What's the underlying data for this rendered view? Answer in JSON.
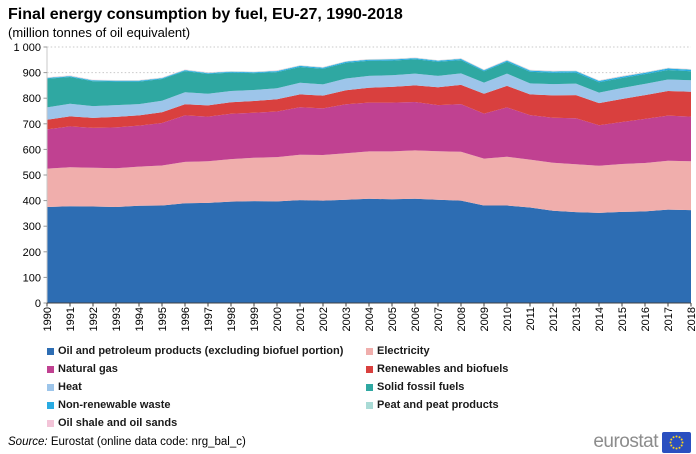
{
  "source": {
    "label": "Source:",
    "text": " Eurostat (online data code: nrg_bal_c)"
  },
  "logo": {
    "text": "eurostat"
  },
  "chart_data": {
    "type": "area",
    "stacked": true,
    "title": "Final energy consumption by fuel, EU-27, 1990-2018",
    "subtitle": "(million tonnes of oil equivalent)",
    "xlabel": "",
    "ylabel": "",
    "ylim": [
      0,
      1000
    ],
    "ytick_interval": 100,
    "yticks": [
      0,
      100,
      200,
      300,
      400,
      500,
      600,
      700,
      800,
      900,
      1000
    ],
    "grid": "horizontal-dashed",
    "legend_position": "bottom-two-columns",
    "x": [
      1990,
      1991,
      1992,
      1993,
      1994,
      1995,
      1996,
      1997,
      1998,
      1999,
      2000,
      2001,
      2002,
      2003,
      2004,
      2005,
      2006,
      2007,
      2008,
      2009,
      2010,
      2011,
      2012,
      2013,
      2014,
      2015,
      2016,
      2017,
      2018
    ],
    "series": [
      {
        "id": "oil",
        "name": "Oil and petroleum products (excluding biofuel portion)",
        "color": "#2d6db3",
        "values": [
          375,
          378,
          377,
          375,
          380,
          381,
          390,
          391,
          396,
          398,
          397,
          402,
          400,
          403,
          407,
          405,
          407,
          403,
          400,
          381,
          381,
          373,
          360,
          355,
          352,
          356,
          358,
          365,
          363
        ]
      },
      {
        "id": "electricity",
        "name": "Electricity",
        "color": "#f0aeac",
        "values": [
          150,
          152,
          151,
          151,
          153,
          156,
          161,
          163,
          166,
          169,
          173,
          177,
          178,
          182,
          185,
          187,
          189,
          190,
          191,
          183,
          190,
          187,
          188,
          187,
          184,
          187,
          189,
          191,
          191
        ]
      },
      {
        "id": "gas",
        "name": "Natural gas",
        "color": "#c04191",
        "values": [
          153,
          160,
          156,
          160,
          160,
          166,
          182,
          174,
          177,
          176,
          178,
          186,
          182,
          191,
          191,
          191,
          189,
          180,
          186,
          176,
          193,
          174,
          176,
          180,
          158,
          164,
          172,
          176,
          174
        ]
      },
      {
        "id": "renewables",
        "name": "Renewables and biofuels",
        "color": "#d9403e",
        "values": [
          38,
          39,
          39,
          41,
          40,
          42,
          43,
          44,
          45,
          46,
          48,
          50,
          50,
          55,
          58,
          61,
          65,
          70,
          75,
          77,
          84,
          81,
          87,
          90,
          87,
          90,
          93,
          96,
          97
        ]
      },
      {
        "id": "heat",
        "name": "Heat",
        "color": "#9dc5ea",
        "values": [
          48,
          49,
          46,
          46,
          44,
          45,
          47,
          45,
          44,
          43,
          43,
          45,
          44,
          46,
          46,
          46,
          46,
          44,
          45,
          44,
          48,
          43,
          44,
          45,
          41,
          43,
          44,
          45,
          45
        ]
      },
      {
        "id": "solid",
        "name": "Solid fossil fuels",
        "color": "#2fa8a2",
        "values": [
          112,
          105,
          97,
          92,
          88,
          85,
          83,
          78,
          72,
          66,
          63,
          62,
          61,
          61,
          59,
          57,
          56,
          55,
          52,
          44,
          46,
          45,
          44,
          43,
          40,
          39,
          38,
          37,
          35
        ]
      },
      {
        "id": "waste",
        "name": "Non-renewable waste",
        "color": "#29abe2",
        "values": [
          3,
          3,
          3,
          3,
          3,
          3,
          3,
          3,
          3,
          3,
          4,
          4,
          4,
          4,
          4,
          4,
          4,
          4,
          4,
          4,
          5,
          5,
          5,
          5,
          5,
          5,
          5,
          6,
          6
        ]
      },
      {
        "id": "peat",
        "name": "Peat and peat products",
        "color": "#a9dbd6",
        "values": [
          2,
          2,
          2,
          2,
          2,
          2,
          2,
          2,
          2,
          2,
          2,
          2,
          2,
          2,
          2,
          2,
          2,
          2,
          2,
          2,
          2,
          2,
          2,
          2,
          2,
          2,
          2,
          2,
          2
        ]
      },
      {
        "id": "shale",
        "name": "Oil shale and oil sands",
        "color": "#f3c4d8",
        "values": [
          1,
          1,
          1,
          1,
          1,
          1,
          1,
          1,
          1,
          1,
          1,
          1,
          1,
          1,
          1,
          1,
          1,
          1,
          1,
          1,
          1,
          1,
          1,
          1,
          1,
          1,
          1,
          1,
          1
        ]
      }
    ],
    "legend": {
      "left": [
        "oil",
        "gas",
        "heat",
        "waste",
        "shale"
      ],
      "right": [
        "electricity",
        "renewables",
        "solid",
        "peat"
      ]
    }
  }
}
